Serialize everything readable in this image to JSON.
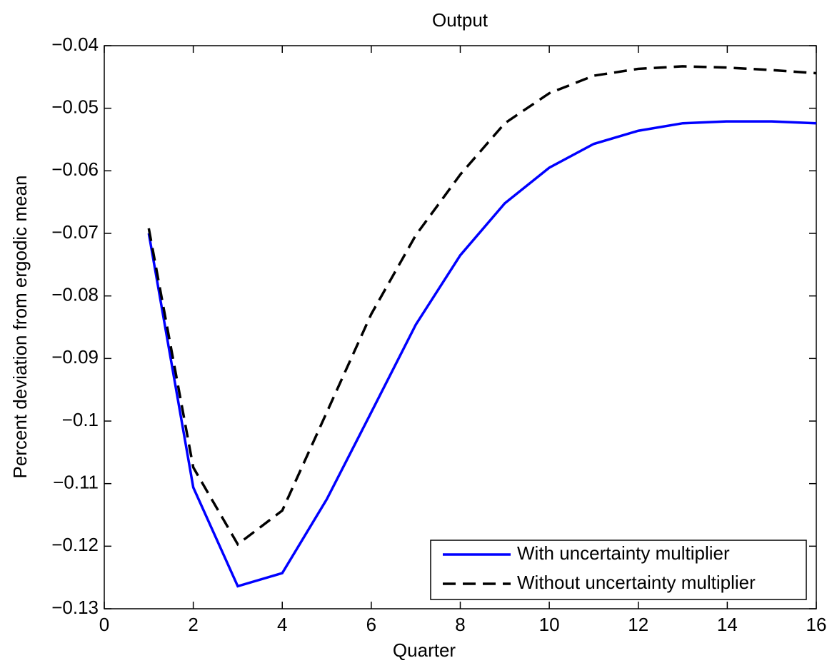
{
  "chart_data": {
    "type": "line",
    "title": "Output",
    "x_label": "Quarter",
    "y_label": "Percent deviation from ergodic mean",
    "x": [
      1,
      2,
      3,
      4,
      5,
      6,
      7,
      8,
      9,
      10,
      11,
      12,
      13,
      14,
      15,
      16
    ],
    "series": [
      {
        "name": "With uncertainty multiplier",
        "color": "#0000ff",
        "dash": "solid",
        "values": [
          -0.07,
          -0.1106,
          -0.1264,
          -0.1243,
          -0.1125,
          -0.0986,
          -0.0846,
          -0.0735,
          -0.0652,
          -0.0595,
          -0.0557,
          -0.0536,
          -0.0524,
          -0.0521,
          -0.0521,
          -0.0524
        ]
      },
      {
        "name": "Without uncertainty multiplier",
        "color": "#000000",
        "dash": "dashed",
        "values": [
          -0.0692,
          -0.1074,
          -0.1197,
          -0.1143,
          -0.0986,
          -0.0829,
          -0.0703,
          -0.0606,
          -0.0524,
          -0.0476,
          -0.0448,
          -0.0437,
          -0.0433,
          -0.0435,
          -0.0439,
          -0.0444
        ]
      }
    ],
    "xlim": [
      0,
      16
    ],
    "xticks": [
      0,
      2,
      4,
      6,
      8,
      10,
      12,
      14,
      16
    ],
    "ylim": [
      -0.13,
      -0.04
    ],
    "yticks": [
      {
        "value": -0.13,
        "label": "−0.13"
      },
      {
        "value": -0.12,
        "label": "−0.12"
      },
      {
        "value": -0.11,
        "label": "−0.11"
      },
      {
        "value": -0.1,
        "label": "−0.1"
      },
      {
        "value": -0.09,
        "label": "−0.09"
      },
      {
        "value": -0.08,
        "label": "−0.08"
      },
      {
        "value": -0.07,
        "label": "−0.07"
      },
      {
        "value": -0.06,
        "label": "−0.06"
      },
      {
        "value": -0.05,
        "label": "−0.05"
      },
      {
        "value": -0.04,
        "label": "−0.04"
      }
    ],
    "grid": false,
    "legend": "lower right"
  }
}
